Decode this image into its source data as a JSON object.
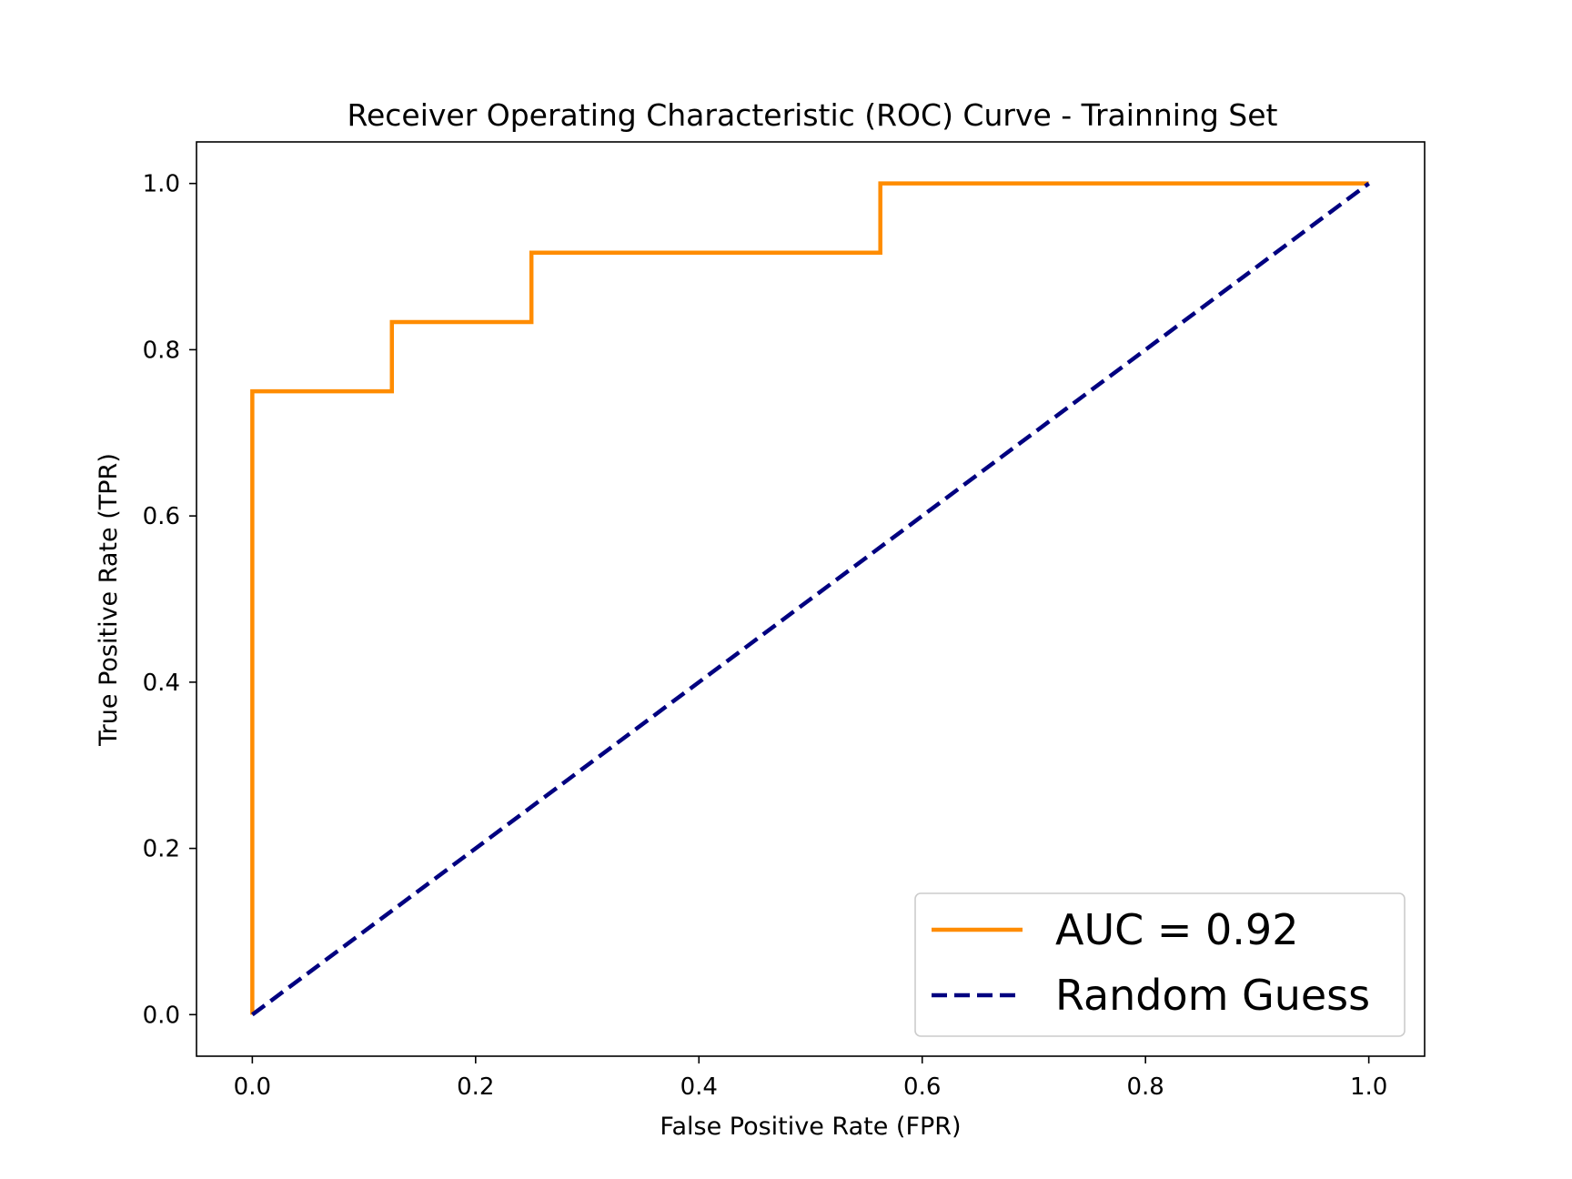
{
  "chart_data": {
    "type": "line",
    "title": "Receiver Operating Characteristic (ROC) Curve - Trainning Set",
    "xlabel": "False Positive Rate (FPR)",
    "ylabel": "True Positive Rate (TPR)",
    "xlim": [
      -0.05,
      1.05
    ],
    "ylim": [
      -0.05,
      1.05
    ],
    "xticks": [
      "0.0",
      "0.2",
      "0.4",
      "0.6",
      "0.8",
      "1.0"
    ],
    "yticks": [
      "0.0",
      "0.2",
      "0.4",
      "0.6",
      "0.8",
      "1.0"
    ],
    "grid": false,
    "legend_position": "lower-right",
    "series": [
      {
        "name": "AUC = 0.92",
        "color": "#ff8c00",
        "style": "solid",
        "x": [
          0.0,
          0.0,
          0.125,
          0.125,
          0.25,
          0.25,
          0.5625,
          0.5625,
          1.0
        ],
        "y": [
          0.0,
          0.75,
          0.75,
          0.8333,
          0.8333,
          0.9167,
          0.9167,
          1.0,
          1.0
        ]
      },
      {
        "name": "Random Guess",
        "color": "#000080",
        "style": "dashed",
        "x": [
          0.0,
          1.0
        ],
        "y": [
          0.0,
          1.0
        ]
      }
    ]
  }
}
